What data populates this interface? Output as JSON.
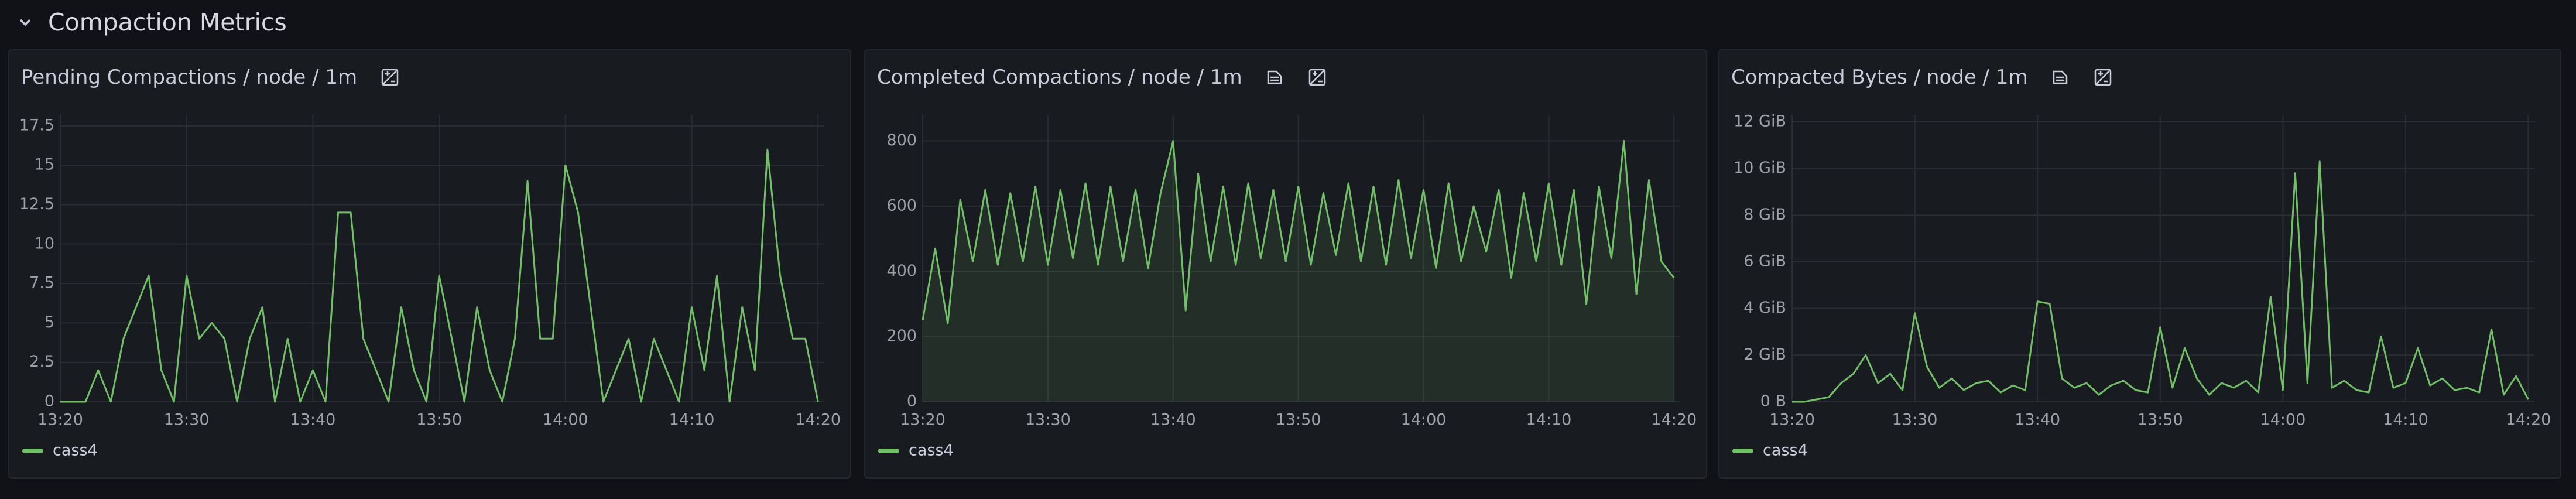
{
  "header": {
    "title": "Compaction Metrics"
  },
  "chart_data": [
    {
      "type": "line",
      "title": "Pending Compactions / node / 1m",
      "grid": true,
      "legend": "bottom-left",
      "x": [
        0,
        1,
        2,
        3,
        4,
        5,
        6,
        7,
        8,
        9,
        10,
        11,
        12,
        13,
        14,
        15,
        16,
        17,
        18,
        19,
        20,
        21,
        22,
        23,
        24,
        25,
        26,
        27,
        28,
        29,
        30,
        31,
        32,
        33,
        34,
        35,
        36,
        37,
        38,
        39,
        40,
        41,
        42,
        43,
        44,
        45,
        46,
        47,
        48,
        49,
        50,
        51,
        52,
        53,
        54,
        55,
        56,
        57,
        58,
        59,
        60
      ],
      "xlim": [
        0,
        60.5
      ],
      "xticks": [
        {
          "value": 0,
          "label": "13:20"
        },
        {
          "value": 10,
          "label": "13:30"
        },
        {
          "value": 20,
          "label": "13:40"
        },
        {
          "value": 30,
          "label": "13:50"
        },
        {
          "value": 40,
          "label": "14:00"
        },
        {
          "value": 50,
          "label": "14:10"
        },
        {
          "value": 60,
          "label": "14:20"
        }
      ],
      "ylim": [
        0,
        18.2
      ],
      "yticks": [
        0,
        2.5,
        5,
        7.5,
        10,
        12.5,
        15,
        17.5
      ],
      "series": [
        {
          "name": "cass4",
          "color": "#73bf69",
          "values": [
            0,
            0,
            0,
            2,
            0,
            4,
            6,
            8,
            2,
            0,
            8,
            4,
            5,
            4,
            0,
            4,
            6,
            0,
            4,
            0,
            2,
            0,
            12,
            12,
            4,
            2,
            0,
            6,
            2,
            0,
            8,
            4,
            0,
            6,
            2,
            0,
            4,
            14,
            4,
            4,
            15,
            12,
            6,
            0,
            2,
            4,
            0,
            4,
            2,
            0,
            6,
            2,
            8,
            0,
            6,
            2,
            16,
            8,
            4,
            4,
            0
          ]
        }
      ]
    },
    {
      "type": "line",
      "title": "Completed Compactions / node / 1m",
      "grid": true,
      "legend": "bottom-left",
      "area": true,
      "x": [
        0,
        1,
        2,
        3,
        4,
        5,
        6,
        7,
        8,
        9,
        10,
        11,
        12,
        13,
        14,
        15,
        16,
        17,
        18,
        19,
        20,
        21,
        22,
        23,
        24,
        25,
        26,
        27,
        28,
        29,
        30,
        31,
        32,
        33,
        34,
        35,
        36,
        37,
        38,
        39,
        40,
        41,
        42,
        43,
        44,
        45,
        46,
        47,
        48,
        49,
        50,
        51,
        52,
        53,
        54,
        55,
        56,
        57,
        58,
        59,
        60
      ],
      "xlim": [
        0,
        60.5
      ],
      "xticks": [
        {
          "value": 0,
          "label": "13:20"
        },
        {
          "value": 10,
          "label": "13:30"
        },
        {
          "value": 20,
          "label": "13:40"
        },
        {
          "value": 30,
          "label": "13:50"
        },
        {
          "value": 40,
          "label": "14:00"
        },
        {
          "value": 50,
          "label": "14:10"
        },
        {
          "value": 60,
          "label": "14:20"
        }
      ],
      "ylim": [
        0,
        880
      ],
      "yticks": [
        0,
        200,
        400,
        600,
        800
      ],
      "series": [
        {
          "name": "cass4",
          "color": "#73bf69",
          "values": [
            250,
            470,
            240,
            620,
            430,
            650,
            420,
            640,
            430,
            660,
            420,
            650,
            440,
            670,
            420,
            660,
            430,
            650,
            410,
            640,
            800,
            280,
            700,
            430,
            660,
            420,
            670,
            440,
            650,
            430,
            660,
            420,
            640,
            450,
            670,
            430,
            660,
            420,
            680,
            440,
            650,
            410,
            670,
            430,
            600,
            460,
            650,
            380,
            640,
            430,
            670,
            420,
            650,
            300,
            660,
            440,
            800,
            330,
            680,
            430,
            380
          ]
        }
      ]
    },
    {
      "type": "line",
      "title": "Compacted Bytes / node / 1m",
      "grid": true,
      "legend": "bottom-left",
      "x": [
        0,
        1,
        2,
        3,
        4,
        5,
        6,
        7,
        8,
        9,
        10,
        11,
        12,
        13,
        14,
        15,
        16,
        17,
        18,
        19,
        20,
        21,
        22,
        23,
        24,
        25,
        26,
        27,
        28,
        29,
        30,
        31,
        32,
        33,
        34,
        35,
        36,
        37,
        38,
        39,
        40,
        41,
        42,
        43,
        44,
        45,
        46,
        47,
        48,
        49,
        50,
        51,
        52,
        53,
        54,
        55,
        56,
        57,
        58,
        59,
        60
      ],
      "xlim": [
        0,
        60.5
      ],
      "xticks": [
        {
          "value": 0,
          "label": "13:20"
        },
        {
          "value": 10,
          "label": "13:30"
        },
        {
          "value": 20,
          "label": "13:40"
        },
        {
          "value": 30,
          "label": "13:50"
        },
        {
          "value": 40,
          "label": "14:00"
        },
        {
          "value": 50,
          "label": "14:10"
        },
        {
          "value": 60,
          "label": "14:20"
        }
      ],
      "ylim": [
        0,
        12.3
      ],
      "yticks": [
        {
          "value": 0,
          "label": "0 B"
        },
        {
          "value": 2,
          "label": "2 GiB"
        },
        {
          "value": 4,
          "label": "4 GiB"
        },
        {
          "value": 6,
          "label": "6 GiB"
        },
        {
          "value": 8,
          "label": "8 GiB"
        },
        {
          "value": 10,
          "label": "10 GiB"
        },
        {
          "value": 12,
          "label": "12 GiB"
        }
      ],
      "series": [
        {
          "name": "cass4",
          "color": "#73bf69",
          "values": [
            0,
            0,
            0.1,
            0.2,
            0.8,
            1.2,
            2,
            0.8,
            1.2,
            0.5,
            3.8,
            1.5,
            0.6,
            1,
            0.5,
            0.8,
            0.9,
            0.4,
            0.7,
            0.5,
            4.3,
            4.2,
            1,
            0.6,
            0.8,
            0.3,
            0.7,
            0.9,
            0.5,
            0.4,
            3.2,
            0.6,
            2.3,
            1,
            0.3,
            0.8,
            0.6,
            0.9,
            0.4,
            4.5,
            0.5,
            9.8,
            0.8,
            10.3,
            0.6,
            0.9,
            0.5,
            0.4,
            2.8,
            0.6,
            0.8,
            2.3,
            0.7,
            1,
            0.5,
            0.6,
            0.4,
            3.1,
            0.3,
            1.1,
            0.1
          ]
        }
      ]
    }
  ]
}
